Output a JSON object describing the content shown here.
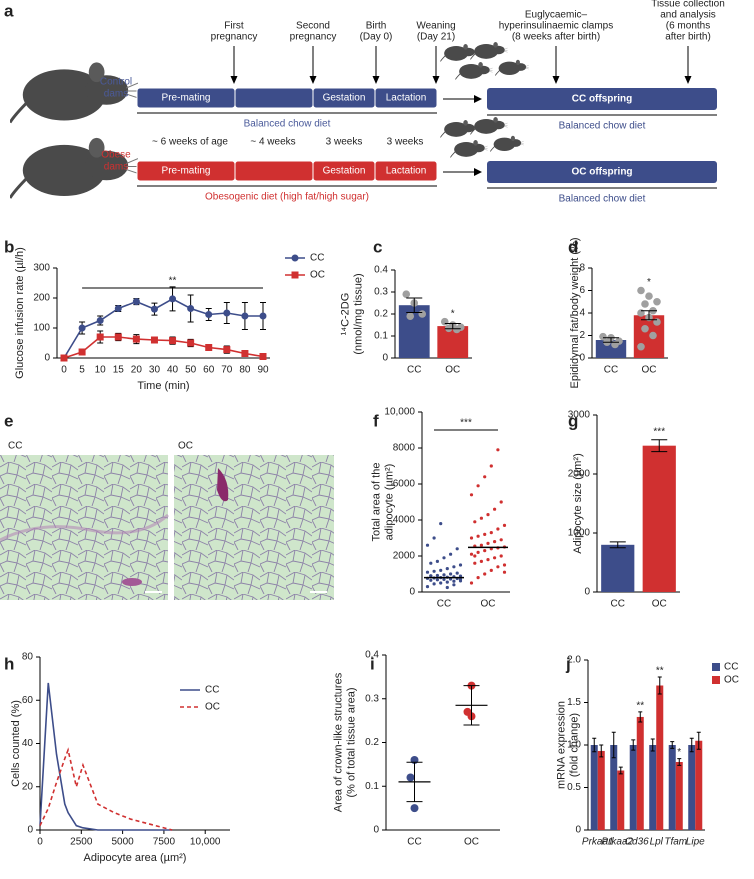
{
  "diagram": {
    "panel": "a",
    "timepoints": [
      [
        "First",
        "pregnancy"
      ],
      [
        "Second",
        "pregnancy"
      ],
      [
        "Birth",
        "(Day 0)"
      ],
      [
        "Weaning",
        "(Day 21)"
      ],
      [
        "Euglycaemic–",
        "hyperinsulinaemic clamps",
        "(8 weeks after birth)"
      ],
      [
        "Tissue collection",
        "and analysis",
        "(6 months",
        "after birth)"
      ]
    ],
    "durations": [
      "~ 6 weeks of age",
      "~ 4 weeks",
      "3 weeks",
      "3 weeks"
    ],
    "groups": [
      {
        "name": [
          "Control",
          "dams"
        ],
        "color": "#4a5a9a",
        "boxes": [
          "Pre-mating",
          null,
          "Gestation",
          "Lactation"
        ],
        "box_color": "#3d4d8a",
        "diet": "Balanced chow diet",
        "offspring": "CC offspring",
        "offspring_color": "#3d4d8a",
        "offspring_diet": "Balanced chow diet"
      },
      {
        "name": [
          "Obese",
          "dams"
        ],
        "color": "#d03030",
        "boxes": [
          "Pre-mating",
          null,
          "Gestation",
          "Lactation"
        ],
        "box_color": "#d03030",
        "diet": "Obesogenic diet (high fat/high sugar)",
        "offspring": "OC offspring",
        "offspring_color": "#3d4d8a",
        "offspring_diet": "Balanced chow diet"
      }
    ]
  },
  "micrographs": {
    "panel": "e",
    "labels": [
      "CC",
      "OC"
    ]
  },
  "chart_data": [
    {
      "panel": "b",
      "type": "line",
      "categories": [
        0,
        5,
        10,
        15,
        20,
        30,
        40,
        50,
        60,
        70,
        80,
        90
      ],
      "xlabel": "Time (min)",
      "ylabel": [
        "Glucose infusion rate (µl/h)"
      ],
      "ylim": [
        0,
        300
      ],
      "yticks": [
        0,
        100,
        200,
        300
      ],
      "annotation": "**",
      "series": [
        {
          "name": "CC",
          "color": "#3d4d8a",
          "marker": "circle",
          "values": [
            0,
            100,
            125,
            165,
            188,
            163,
            197,
            165,
            145,
            150,
            140,
            140
          ],
          "errors": [
            0,
            20,
            15,
            10,
            10,
            20,
            40,
            45,
            20,
            35,
            45,
            45
          ]
        },
        {
          "name": "OC",
          "color": "#d03030",
          "marker": "square",
          "values": [
            0,
            20,
            70,
            70,
            63,
            60,
            58,
            50,
            35,
            28,
            15,
            5
          ],
          "errors": [
            0,
            10,
            20,
            12,
            15,
            10,
            12,
            12,
            10,
            12,
            10,
            5
          ]
        }
      ]
    },
    {
      "panel": "c",
      "type": "bar",
      "categories": [
        "CC",
        "OC"
      ],
      "values": [
        0.24,
        0.145
      ],
      "errors": [
        0.033,
        0.012
      ],
      "colors": [
        "#3d4d8a",
        "#d03030"
      ],
      "points": [
        [
          0.29,
          0.25,
          0.2,
          0.19
        ],
        [
          0.165,
          0.15,
          0.14,
          0.135,
          0.13
        ]
      ],
      "significance": [
        null,
        "*"
      ],
      "ylabel": [
        "¹⁴C-2DG",
        "(nmol/mg tissue)"
      ],
      "ylim": [
        0,
        0.4
      ],
      "yticks": [
        0,
        0.1,
        0.2,
        0.3,
        0.4
      ]
    },
    {
      "panel": "d",
      "type": "bar",
      "categories": [
        "CC",
        "OC"
      ],
      "values": [
        1.6,
        3.8
      ],
      "errors": [
        0.2,
        0.4
      ],
      "colors": [
        "#3d4d8a",
        "#d03030"
      ],
      "points": [
        [
          1.9,
          1.8,
          1.5,
          1.4,
          1.2
        ],
        [
          6.0,
          5.5,
          5.0,
          4.8,
          4.2,
          4.0,
          3.6,
          3.2,
          2.6,
          2.0,
          1.0
        ]
      ],
      "significance": [
        null,
        "*"
      ],
      "ylabel": [
        "Epididymal fat/body weight (%)"
      ],
      "ylim": [
        0,
        8
      ],
      "yticks": [
        0,
        2,
        4,
        6,
        8
      ]
    },
    {
      "panel": "f",
      "type": "strip",
      "categories": [
        "CC",
        "OC"
      ],
      "colors": [
        "#3d4d8a",
        "#d03030"
      ],
      "points": [
        [
          300,
          450,
          500,
          550,
          600,
          620,
          650,
          680,
          700,
          720,
          750,
          760,
          780,
          800,
          820,
          850,
          880,
          900,
          920,
          950,
          1000,
          1050,
          1100,
          1150,
          1200,
          1300,
          1400,
          1500,
          1600,
          1700,
          1900,
          2100,
          2400,
          2600,
          3000,
          3800,
          250,
          400,
          700,
          900
        ],
        [
          500,
          800,
          1000,
          1200,
          1400,
          1500,
          1600,
          1700,
          1800,
          1900,
          2000,
          2100,
          2200,
          2300,
          2400,
          2450,
          2500,
          2550,
          2600,
          2700,
          2800,
          2900,
          3000,
          3100,
          3200,
          3300,
          3500,
          3700,
          3900,
          4100,
          4300,
          4600,
          5000,
          5400,
          5900,
          6400,
          7000,
          7900,
          1100,
          2000
        ]
      ],
      "means": [
        800,
        2480
      ],
      "annotation": "***",
      "ylabel": [
        "Total area of the",
        "adipocyte (µm²)"
      ],
      "ylim": [
        0,
        10000
      ],
      "yticks": [
        0,
        2000,
        4000,
        6000,
        8000,
        {
          "value": 10000,
          "label": "10,000"
        }
      ]
    },
    {
      "panel": "g",
      "type": "bar",
      "categories": [
        "CC",
        "OC"
      ],
      "values": [
        800,
        2480
      ],
      "errors": [
        50,
        100
      ],
      "colors": [
        "#3d4d8a",
        "#d03030"
      ],
      "significance": [
        null,
        "***"
      ],
      "ylabel": [
        "Adipocyte size (µm²)"
      ],
      "ylim": [
        0,
        3000
      ],
      "yticks": [
        0,
        1000,
        2000,
        3000
      ]
    },
    {
      "panel": "h",
      "type": "line",
      "x": [
        0,
        500,
        1000,
        1500,
        1700,
        2200,
        2600,
        3500,
        4500,
        5500,
        6500,
        7500,
        8000
      ],
      "xlabel": "Adipocyte area (µm²)",
      "ylabel": [
        "Cells counted (%)"
      ],
      "xlim": [
        0,
        11500
      ],
      "xticks": [
        0,
        2500,
        5000,
        7500,
        {
          "value": 10000,
          "label": "10,000"
        }
      ],
      "ylim": [
        0,
        80
      ],
      "yticks": [
        0,
        20,
        40,
        60,
        80
      ],
      "series": [
        {
          "name": "CC",
          "color": "#3d4d8a",
          "values": [
            2,
            68,
            35,
            12,
            8,
            2,
            1,
            0,
            0,
            0,
            0,
            0,
            0
          ]
        },
        {
          "name": "OC",
          "color": "#d03030",
          "dashed": true,
          "values": [
            2,
            10,
            22,
            33,
            37,
            20,
            30,
            12,
            8,
            5,
            3,
            1,
            0
          ]
        }
      ]
    },
    {
      "panel": "i",
      "type": "dot",
      "categories": [
        "CC",
        "OC"
      ],
      "colors": [
        "#3d4d8a",
        "#d03030"
      ],
      "points": [
        [
          0.16,
          0.12,
          0.05
        ],
        [
          0.33,
          0.27,
          0.26
        ]
      ],
      "means": [
        0.11,
        0.285
      ],
      "errors": [
        0.045,
        0.045
      ],
      "ylabel": [
        "Area of crown-like structures",
        "(% of total tissue area)"
      ],
      "ylim": [
        0,
        0.4
      ],
      "yticks": [
        0,
        0.1,
        0.2,
        0.3,
        0.4
      ]
    },
    {
      "panel": "j",
      "type": "bar",
      "categories": [
        "Prkaa1",
        "Prkaa2",
        "Cd36",
        "Lpl",
        "Tfam",
        "Lipe"
      ],
      "ylabel": [
        "mRNA expression",
        "(fold change)"
      ],
      "ylim": [
        0,
        2
      ],
      "yticks": [
        0,
        0.5,
        {
          "value": 1,
          "label": "1.0"
        },
        1.5,
        {
          "value": 2,
          "label": "2.0"
        }
      ],
      "series": [
        {
          "name": "CC",
          "color": "#3d4d8a",
          "values": [
            1.0,
            1.0,
            1.0,
            1.0,
            1.0,
            1.0
          ],
          "errors": [
            0.08,
            0.15,
            0.06,
            0.07,
            0.04,
            0.08
          ],
          "significance": [
            null,
            null,
            null,
            null,
            null,
            null
          ]
        },
        {
          "name": "OC",
          "color": "#d03030",
          "values": [
            0.93,
            0.7,
            1.33,
            1.7,
            0.8,
            1.05
          ],
          "errors": [
            0.07,
            0.04,
            0.06,
            0.1,
            0.04,
            0.1
          ],
          "significance": [
            null,
            null,
            "**",
            "**",
            "*",
            null
          ]
        }
      ]
    }
  ]
}
